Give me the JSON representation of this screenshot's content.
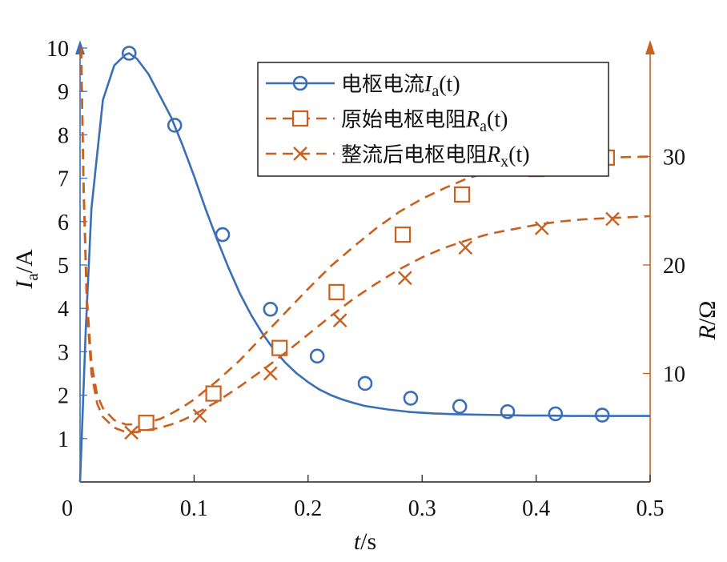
{
  "chart_data": {
    "type": "line",
    "x_label": {
      "var": "t",
      "unit": "/s"
    },
    "y_left_label": {
      "var": "I",
      "sub": "a",
      "unit": "/A"
    },
    "y_right_label": {
      "var": "R",
      "unit": "/Ω"
    },
    "xlim": [
      0,
      0.5
    ],
    "ylim_left": [
      0,
      10
    ],
    "ylim_right": [
      0,
      40
    ],
    "x_ticks": [
      "0.1",
      "0.2",
      "0.3",
      "0.4",
      "0.5"
    ],
    "y_left_ticks": [
      "1",
      "2",
      "3",
      "4",
      "5",
      "6",
      "7",
      "8",
      "9",
      "10"
    ],
    "y_right_ticks": [
      "10",
      "20",
      "30"
    ],
    "origin_label": "0",
    "grid": false,
    "legend_position": "top-right",
    "colors": {
      "current": "#3a6fb7",
      "resistance": "#c9601d"
    },
    "series": [
      {
        "name_prefix": "电枢电流",
        "var": "I",
        "sub": "a",
        "arg": "(t)",
        "axis": "left",
        "style": "solid",
        "marker": "circle",
        "x": [
          0,
          0.005,
          0.01,
          0.02,
          0.03,
          0.04,
          0.043,
          0.05,
          0.06,
          0.07,
          0.08,
          0.09,
          0.1,
          0.11,
          0.12,
          0.13,
          0.14,
          0.15,
          0.16,
          0.17,
          0.18,
          0.19,
          0.2,
          0.21,
          0.22,
          0.23,
          0.24,
          0.25,
          0.27,
          0.29,
          0.31,
          0.33,
          0.35,
          0.37,
          0.39,
          0.41,
          0.43,
          0.45,
          0.47,
          0.5
        ],
        "y": [
          0,
          3.5,
          6.3,
          8.8,
          9.6,
          9.85,
          9.88,
          9.75,
          9.4,
          8.9,
          8.4,
          7.75,
          7.05,
          6.3,
          5.6,
          4.95,
          4.35,
          3.85,
          3.42,
          3.05,
          2.75,
          2.5,
          2.3,
          2.13,
          2.0,
          1.9,
          1.82,
          1.75,
          1.67,
          1.61,
          1.58,
          1.56,
          1.55,
          1.54,
          1.53,
          1.53,
          1.52,
          1.52,
          1.52,
          1.52
        ],
        "marker_x": [
          0.043,
          0.083,
          0.125,
          0.167,
          0.208,
          0.25,
          0.29,
          0.333,
          0.375,
          0.417,
          0.458
        ],
        "marker_y": [
          9.88,
          8.22,
          5.7,
          3.98,
          2.9,
          2.27,
          1.93,
          1.74,
          1.62,
          1.57,
          1.54
        ]
      },
      {
        "name_prefix": "原始电枢电阻",
        "var": "R",
        "sub": "a",
        "arg": "(t)",
        "axis": "right",
        "style": "dashed",
        "marker": "square",
        "x": [
          0.001,
          0.003,
          0.006,
          0.01,
          0.015,
          0.02,
          0.03,
          0.04,
          0.05,
          0.06,
          0.07,
          0.08,
          0.09,
          0.1,
          0.12,
          0.14,
          0.16,
          0.18,
          0.2,
          0.22,
          0.24,
          0.26,
          0.28,
          0.3,
          0.32,
          0.34,
          0.36,
          0.38,
          0.4,
          0.42,
          0.44,
          0.46,
          0.48,
          0.5
        ],
        "y": [
          40,
          28,
          17,
          11,
          8,
          6.8,
          5.7,
          5.3,
          5.3,
          5.5,
          5.8,
          6.3,
          6.9,
          7.6,
          9.3,
          11.2,
          13.4,
          15.6,
          17.8,
          19.9,
          21.7,
          23.4,
          24.9,
          26.1,
          27.1,
          28.0,
          28.6,
          29.1,
          29.5,
          29.7,
          29.8,
          29.9,
          29.95,
          30.0
        ],
        "marker_x": [
          0.058,
          0.117,
          0.175,
          0.225,
          0.283,
          0.335,
          0.4,
          0.462
        ],
        "marker_y": [
          5.45,
          8.15,
          12.35,
          17.5,
          22.8,
          26.5,
          28.85,
          29.9
        ]
      },
      {
        "name_prefix": "整流后电枢电阻",
        "var": "R",
        "sub": "x",
        "arg": "(t)",
        "axis": "right",
        "style": "dashed",
        "marker": "x",
        "x": [
          0.001,
          0.003,
          0.006,
          0.01,
          0.015,
          0.02,
          0.03,
          0.04,
          0.05,
          0.06,
          0.07,
          0.08,
          0.09,
          0.1,
          0.12,
          0.14,
          0.16,
          0.18,
          0.2,
          0.22,
          0.24,
          0.26,
          0.28,
          0.3,
          0.32,
          0.34,
          0.36,
          0.38,
          0.4,
          0.42,
          0.44,
          0.46,
          0.48,
          0.5
        ],
        "y": [
          40,
          27,
          16,
          10,
          7.2,
          6.0,
          5.0,
          4.6,
          4.6,
          4.8,
          5.0,
          5.3,
          5.7,
          6.2,
          7.4,
          8.8,
          10.3,
          11.9,
          13.6,
          15.3,
          16.9,
          18.3,
          19.6,
          20.7,
          21.6,
          22.3,
          22.9,
          23.3,
          23.7,
          24.0,
          24.2,
          24.3,
          24.4,
          24.5
        ],
        "marker_x": [
          0.045,
          0.105,
          0.167,
          0.228,
          0.285,
          0.338,
          0.405,
          0.467
        ],
        "marker_y": [
          4.55,
          6.1,
          10.0,
          14.9,
          18.8,
          21.6,
          23.4,
          24.25
        ]
      }
    ]
  }
}
